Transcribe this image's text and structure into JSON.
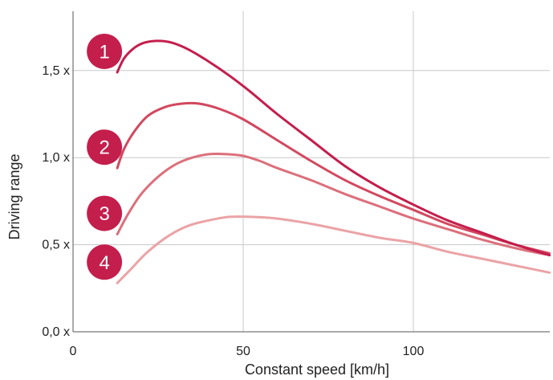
{
  "chart_data": {
    "type": "line",
    "title": "",
    "xlabel": "Constant speed [km/h]",
    "ylabel": "Driving range",
    "xlim": [
      0,
      140
    ],
    "ylim": [
      0,
      1.8
    ],
    "x_ticks": [
      {
        "value": 0,
        "label": "0"
      },
      {
        "value": 50,
        "label": "50"
      },
      {
        "value": 100,
        "label": "100"
      }
    ],
    "y_ticks": [
      {
        "value": 0,
        "label": "0,0 x"
      },
      {
        "value": 0.5,
        "label": "0,5 x"
      },
      {
        "value": 1.0,
        "label": "1,0 x"
      },
      {
        "value": 1.5,
        "label": "1,5 x"
      }
    ],
    "grid": true,
    "series": [
      {
        "marker": "1",
        "color": "#c41e4c",
        "points": [
          [
            13,
            1.49
          ],
          [
            15,
            1.57
          ],
          [
            18,
            1.63
          ],
          [
            21,
            1.66
          ],
          [
            25,
            1.67
          ],
          [
            29,
            1.66
          ],
          [
            34,
            1.62
          ],
          [
            40,
            1.55
          ],
          [
            46,
            1.47
          ],
          [
            52,
            1.38
          ],
          [
            60,
            1.25
          ],
          [
            70,
            1.1
          ],
          [
            80,
            0.95
          ],
          [
            90,
            0.83
          ],
          [
            100,
            0.73
          ],
          [
            110,
            0.64
          ],
          [
            120,
            0.57
          ],
          [
            130,
            0.5
          ],
          [
            140,
            0.44
          ]
        ]
      },
      {
        "marker": "2",
        "color": "#d2485f",
        "points": [
          [
            13,
            0.94
          ],
          [
            15,
            1.05
          ],
          [
            18,
            1.15
          ],
          [
            22,
            1.24
          ],
          [
            27,
            1.29
          ],
          [
            32,
            1.31
          ],
          [
            37,
            1.31
          ],
          [
            43,
            1.28
          ],
          [
            50,
            1.22
          ],
          [
            60,
            1.1
          ],
          [
            70,
            0.98
          ],
          [
            80,
            0.87
          ],
          [
            90,
            0.78
          ],
          [
            100,
            0.7
          ],
          [
            110,
            0.62
          ],
          [
            120,
            0.56
          ],
          [
            130,
            0.5
          ],
          [
            140,
            0.45
          ]
        ]
      },
      {
        "marker": "3",
        "color": "#dc6f7b",
        "points": [
          [
            13,
            0.56
          ],
          [
            16,
            0.67
          ],
          [
            20,
            0.79
          ],
          [
            25,
            0.89
          ],
          [
            30,
            0.96
          ],
          [
            35,
            1.0
          ],
          [
            40,
            1.02
          ],
          [
            45,
            1.02
          ],
          [
            50,
            1.01
          ],
          [
            55,
            0.98
          ],
          [
            60,
            0.94
          ],
          [
            70,
            0.87
          ],
          [
            80,
            0.79
          ],
          [
            90,
            0.72
          ],
          [
            100,
            0.65
          ],
          [
            110,
            0.59
          ],
          [
            120,
            0.53
          ],
          [
            130,
            0.48
          ],
          [
            140,
            0.44
          ]
        ]
      },
      {
        "marker": "4",
        "color": "#eba3a6",
        "points": [
          [
            13,
            0.28
          ],
          [
            17,
            0.36
          ],
          [
            22,
            0.46
          ],
          [
            28,
            0.55
          ],
          [
            34,
            0.61
          ],
          [
            40,
            0.64
          ],
          [
            46,
            0.66
          ],
          [
            52,
            0.66
          ],
          [
            60,
            0.65
          ],
          [
            70,
            0.62
          ],
          [
            80,
            0.58
          ],
          [
            90,
            0.54
          ],
          [
            100,
            0.51
          ],
          [
            110,
            0.46
          ],
          [
            120,
            0.42
          ],
          [
            130,
            0.38
          ],
          [
            140,
            0.34
          ]
        ]
      }
    ]
  }
}
